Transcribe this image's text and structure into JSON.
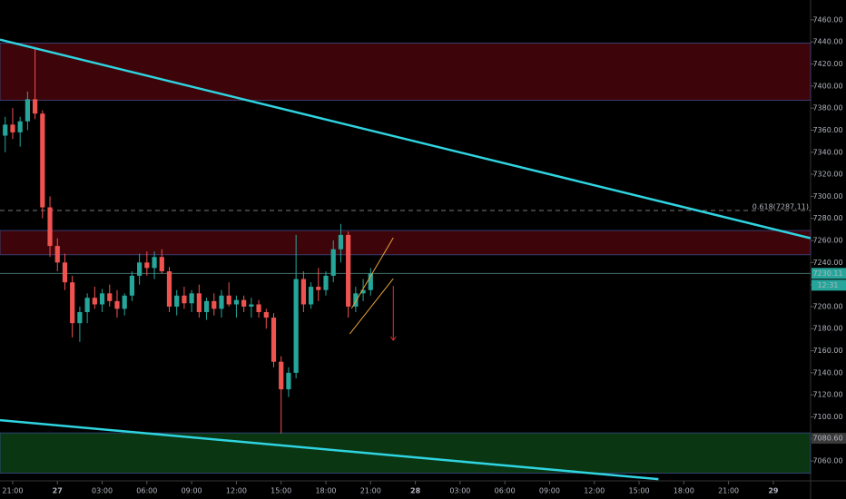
{
  "chart_data": {
    "type": "candlestick",
    "x": [
      -3.5,
      -3,
      -2.5,
      -2,
      -1.5,
      -1,
      -0.5,
      0,
      0.5,
      1,
      1.5,
      2,
      2.5,
      3,
      3.5,
      4,
      4.5,
      5,
      5.5,
      6,
      6.5,
      7,
      7.5,
      8,
      8.5,
      9,
      9.5,
      10,
      10.5,
      11,
      11.5,
      12,
      12.5,
      13,
      13.5,
      14,
      14.5,
      15,
      15.5,
      16,
      16.5,
      17,
      17.5,
      18,
      18.5,
      19,
      19.5,
      20,
      20.5,
      21
    ],
    "open": [
      7355,
      7365,
      7358,
      7368,
      7388,
      7375,
      7290,
      7255,
      7240,
      7222,
      7185,
      7195,
      7208,
      7202,
      7212,
      7205,
      7198,
      7210,
      7228,
      7240,
      7235,
      7245,
      7232,
      7200,
      7210,
      7203,
      7212,
      7195,
      7205,
      7198,
      7210,
      7202,
      7206,
      7200,
      7202,
      7195,
      7190,
      7150,
      7125,
      7140,
      7225,
      7202,
      7218,
      7215,
      7228,
      7252,
      7265,
      7200,
      7212,
      7215
    ],
    "high": [
      7372,
      7380,
      7372,
      7395,
      7435,
      7378,
      7300,
      7262,
      7248,
      7228,
      7200,
      7212,
      7218,
      7216,
      7220,
      7215,
      7212,
      7232,
      7248,
      7250,
      7250,
      7252,
      7236,
      7215,
      7218,
      7215,
      7220,
      7208,
      7212,
      7215,
      7222,
      7210,
      7210,
      7208,
      7206,
      7198,
      7194,
      7155,
      7145,
      7265,
      7232,
      7222,
      7235,
      7232,
      7260,
      7275,
      7268,
      7218,
      7225,
      7235
    ],
    "low": [
      7340,
      7352,
      7345,
      7360,
      7370,
      7280,
      7245,
      7232,
      7215,
      7172,
      7168,
      7185,
      7198,
      7195,
      7200,
      7190,
      7192,
      7205,
      7220,
      7228,
      7225,
      7230,
      7195,
      7192,
      7198,
      7195,
      7190,
      7188,
      7192,
      7190,
      7200,
      7190,
      7195,
      7190,
      7190,
      7180,
      7145,
      7085,
      7118,
      7135,
      7195,
      7198,
      7205,
      7210,
      7222,
      7240,
      7190,
      7195,
      7205,
      7210
    ],
    "close": [
      7365,
      7358,
      7368,
      7388,
      7375,
      7290,
      7255,
      7240,
      7222,
      7185,
      7195,
      7208,
      7202,
      7212,
      7205,
      7198,
      7210,
      7228,
      7240,
      7235,
      7245,
      7232,
      7200,
      7210,
      7203,
      7212,
      7195,
      7205,
      7198,
      7210,
      7202,
      7206,
      7200,
      7202,
      7195,
      7190,
      7150,
      7125,
      7140,
      7225,
      7202,
      7218,
      7215,
      7228,
      7252,
      7265,
      7200,
      7212,
      7215,
      7230.11
    ],
    "up_color": "#26a69a",
    "down_color": "#ef5350",
    "xlim": [
      -3.85,
      50.5
    ],
    "xticks": [
      {
        "value": -3,
        "label": "21:00"
      },
      {
        "value": 0,
        "label": "27"
      },
      {
        "value": 3,
        "label": "03:00"
      },
      {
        "value": 6,
        "label": "06:00"
      },
      {
        "value": 9,
        "label": "09:00"
      },
      {
        "value": 12,
        "label": "12:00"
      },
      {
        "value": 15,
        "label": "15:00"
      },
      {
        "value": 18,
        "label": "18:00"
      },
      {
        "value": 21,
        "label": "21:00"
      },
      {
        "value": 24,
        "label": "28"
      },
      {
        "value": 27,
        "label": "03:00"
      },
      {
        "value": 30,
        "label": "06:00"
      },
      {
        "value": 33,
        "label": "09:00"
      },
      {
        "value": 36,
        "label": "12:00"
      },
      {
        "value": 39,
        "label": "15:00"
      },
      {
        "value": 42,
        "label": "18:00"
      },
      {
        "value": 45,
        "label": "21:00"
      },
      {
        "value": 48,
        "label": "29"
      }
    ],
    "ylim": [
      7042,
      7478
    ],
    "yticks": [
      {
        "value": 7460,
        "label": "7460.00"
      },
      {
        "value": 7440,
        "label": "7440.00"
      },
      {
        "value": 7420,
        "label": "7420.00"
      },
      {
        "value": 7400,
        "label": "7400.00"
      },
      {
        "value": 7380,
        "label": "7380.00"
      },
      {
        "value": 7360,
        "label": "7360.00"
      },
      {
        "value": 7340,
        "label": "7340.00"
      },
      {
        "value": 7320,
        "label": "7320.00"
      },
      {
        "value": 7300,
        "label": "7300.00"
      },
      {
        "value": 7280,
        "label": "7280.00"
      },
      {
        "value": 7260,
        "label": "7260.00"
      },
      {
        "value": 7240,
        "label": "7240.00"
      },
      {
        "value": 7220,
        "label": "7220.00"
      },
      {
        "value": 7200,
        "label": "7200.00"
      },
      {
        "value": 7180,
        "label": "7180.00"
      },
      {
        "value": 7160,
        "label": "7160.00"
      },
      {
        "value": 7140,
        "label": "7140.00"
      },
      {
        "value": 7120,
        "label": "7120.00"
      },
      {
        "value": 7100,
        "label": "7100.00"
      },
      {
        "value": 7080,
        "label": "7080.00"
      },
      {
        "value": 7060,
        "label": "7060.00"
      }
    ],
    "zones": [
      {
        "color": "#3d0509",
        "range": [
          7387,
          7439
        ]
      },
      {
        "color": "#3d0509",
        "range": [
          7247,
          7269
        ]
      },
      {
        "color": "#0a3612",
        "range": [
          7049,
          7085.5
        ]
      }
    ],
    "trendlines": [
      {
        "color": "#2fd4e0",
        "points": [
          [
            -3.85,
            7442
          ],
          [
            50.5,
            7262
          ]
        ]
      },
      {
        "color": "#2fd4e0",
        "points": [
          [
            -3.85,
            7097
          ],
          [
            40.3,
            7043.5
          ]
        ]
      },
      {
        "color": "#e8a33a",
        "points": [
          [
            19.72,
            7198.3
          ],
          [
            22.52,
            7262.5
          ]
        ]
      },
      {
        "color": "#e8a33a",
        "points": [
          [
            19.6,
            7175.2
          ],
          [
            22.52,
            7225.4
          ]
        ]
      }
    ],
    "arrow": {
      "color": "#e0322f",
      "points": [
        [
          22.52,
          7218.8
        ],
        [
          22.52,
          7169.5
        ]
      ]
    },
    "levels": [
      {
        "value": 7287.11,
        "label": "0.618(7287.11)",
        "color": "#777"
      }
    ],
    "price_labels": [
      {
        "value": 7230.11,
        "label": "7230.11",
        "color": "#26a69a"
      },
      {
        "value": 7080.6,
        "label": "7080.60",
        "color": "#3a3a3a"
      }
    ],
    "countdown": "12:31"
  }
}
